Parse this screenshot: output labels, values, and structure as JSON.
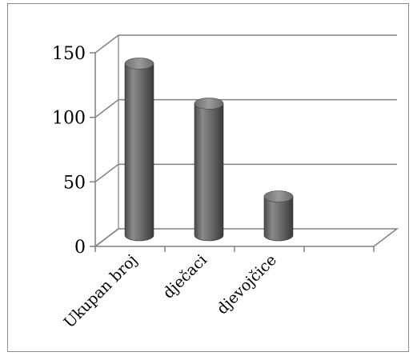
{
  "chart_data": {
    "type": "bar",
    "style": "3d-cylinder",
    "categories": [
      "Ukupan broj",
      "dječaci",
      "djevojčice",
      ""
    ],
    "values": [
      133,
      102,
      30,
      null
    ],
    "ylim": [
      0,
      150
    ],
    "yticks": [
      0,
      50,
      100,
      150
    ],
    "grid": true,
    "legend": "none",
    "bar_color": "#808080",
    "gridline_color": "#808080"
  }
}
